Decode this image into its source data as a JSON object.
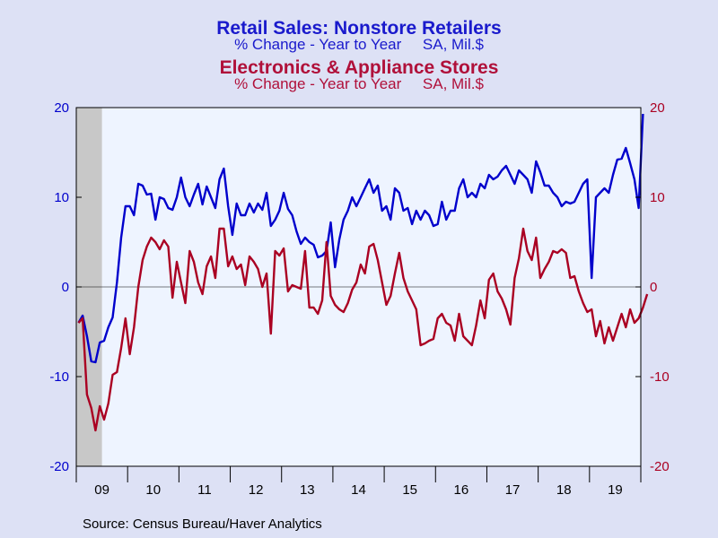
{
  "chart_data": {
    "type": "line",
    "title_primary": "Retail Sales: Nonstore Retailers",
    "subtitle_primary": "% Change - Year to Year     SA, Mil.$",
    "title_secondary": "Electronics & Appliance Stores",
    "subtitle_secondary": "% Change - Year to Year     SA, Mil.$",
    "source": "Source:  Census Bureau/Haver Analytics",
    "x_tick_labels": [
      "09",
      "10",
      "11",
      "12",
      "13",
      "14",
      "15",
      "16",
      "17",
      "18",
      "19"
    ],
    "y_ticks": [
      20,
      10,
      0,
      -10,
      -20
    ],
    "y_left_labels": [
      "20",
      "10",
      "0",
      "-10",
      "-20"
    ],
    "y_right_labels": [
      "20",
      "10",
      "0",
      "-10",
      "-20"
    ],
    "ylim": [
      -20,
      20
    ],
    "x_start": "2009-01",
    "x_end": "2019-12",
    "recession_shade": [
      "2009-01",
      "2009-06"
    ],
    "colors": {
      "primary": "#0000cc",
      "secondary": "#aa0022",
      "plot_bg": "#eef4ff",
      "page_bg": "#dde1f5",
      "shade": "#c8c8c8"
    },
    "series": [
      {
        "name": "Retail Sales: Nonstore Retailers",
        "color": "#0000cc",
        "values": [
          -4.0,
          -3.2,
          -5.5,
          -8.3,
          -8.4,
          -6.2,
          -6.0,
          -4.5,
          -3.4,
          0.5,
          5.5,
          9.0,
          9.0,
          8.0,
          11.5,
          11.3,
          10.3,
          10.4,
          7.5,
          10.0,
          9.8,
          8.8,
          8.6,
          10.0,
          12.2,
          10.0,
          9.0,
          10.3,
          11.5,
          9.2,
          11.2,
          10.0,
          8.8,
          12.0,
          13.2,
          9.0,
          5.8,
          9.3,
          8.0,
          8.0,
          9.3,
          8.3,
          9.3,
          8.6,
          10.5,
          6.8,
          7.5,
          8.5,
          10.5,
          8.7,
          8.0,
          6.2,
          4.8,
          5.5,
          5.0,
          4.7,
          3.3,
          3.5,
          4.0,
          7.2,
          2.2,
          5.3,
          7.5,
          8.5,
          10.0,
          9.0,
          10.0,
          11.0,
          12.0,
          10.5,
          11.3,
          8.5,
          9.0,
          7.5,
          11.0,
          10.5,
          8.5,
          8.8,
          7.0,
          8.5,
          7.5,
          8.5,
          8.0,
          6.8,
          7.0,
          9.5,
          7.5,
          8.5,
          8.5,
          11.0,
          12.0,
          10.0,
          10.5,
          10.0,
          11.5,
          11.0,
          12.5,
          12.0,
          12.3,
          13.0,
          13.5,
          12.5,
          11.5,
          13.0,
          12.5,
          12.0,
          10.5,
          14.0,
          12.8,
          11.3,
          11.3,
          10.5,
          10.0,
          9.0,
          9.5,
          9.3,
          9.5,
          10.5,
          11.5,
          12.0,
          1.0,
          10.0,
          10.5,
          11.0,
          10.5,
          12.5,
          14.2,
          14.3,
          15.5,
          13.8,
          12.0,
          8.8,
          19.3
        ]
      },
      {
        "name": "Electronics & Appliance Stores",
        "color": "#aa0022",
        "values": [
          -4.0,
          -3.5,
          -12.0,
          -13.5,
          -16.0,
          -13.3,
          -14.8,
          -13.0,
          -9.8,
          -9.5,
          -6.8,
          -3.5,
          -7.5,
          -4.5,
          0.0,
          3.0,
          4.5,
          5.5,
          5.0,
          4.2,
          5.2,
          4.5,
          -1.2,
          2.8,
          0.5,
          -1.8,
          4.0,
          2.8,
          0.5,
          -0.8,
          2.3,
          3.4,
          1.0,
          6.5,
          6.5,
          2.3,
          3.4,
          2.0,
          2.5,
          0.2,
          3.4,
          2.8,
          2.0,
          0.0,
          1.5,
          -5.2,
          4.0,
          3.5,
          4.3,
          -0.5,
          0.2,
          0.0,
          -0.2,
          4.0,
          -2.3,
          -2.3,
          -3.0,
          -1.5,
          5.0,
          -1.0,
          -2.0,
          -2.5,
          -2.8,
          -1.8,
          -0.3,
          0.5,
          2.5,
          1.5,
          4.5,
          4.8,
          3.0,
          0.5,
          -2.0,
          -1.0,
          1.5,
          3.8,
          1.0,
          -0.5,
          -1.5,
          -2.5,
          -6.5,
          -6.3,
          -6.0,
          -5.8,
          -3.5,
          -3.0,
          -4.0,
          -4.3,
          -6.0,
          -3.0,
          -5.5,
          -6.0,
          -6.5,
          -4.3,
          -1.5,
          -3.5,
          0.8,
          1.5,
          -0.5,
          -1.3,
          -2.5,
          -4.2,
          1.0,
          3.2,
          6.5,
          4.0,
          3.0,
          5.5,
          1.0,
          2.0,
          2.8,
          4.0,
          3.8,
          4.2,
          3.8,
          1.0,
          1.2,
          -0.5,
          -1.8,
          -2.8,
          -2.5,
          -5.5,
          -3.8,
          -6.3,
          -4.5,
          -6.0,
          -4.5,
          -3.0,
          -4.5,
          -2.5,
          -4.0,
          -3.5,
          -2.3,
          -0.8
        ]
      }
    ]
  }
}
